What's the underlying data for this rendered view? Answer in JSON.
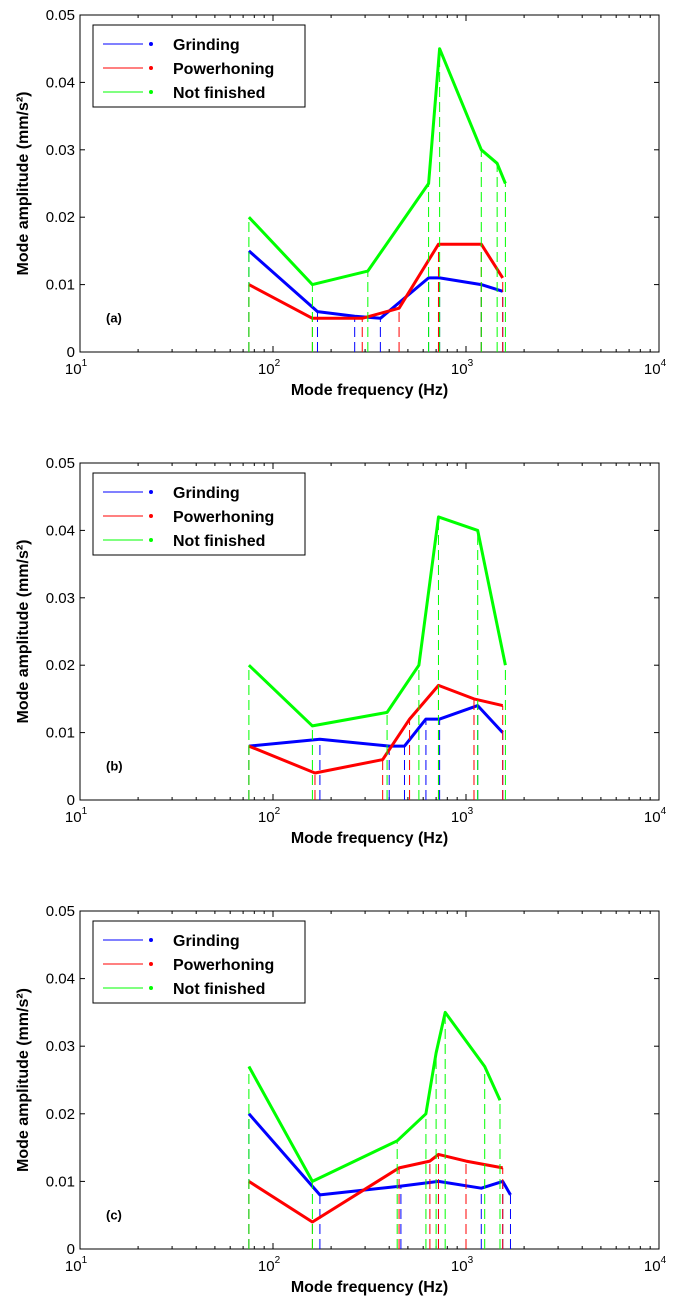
{
  "chart_data": [
    {
      "type": "line",
      "panel_label": "(a)",
      "xlabel": "Mode frequency (Hz)",
      "ylabel": "Mode amplitude (mm/s²)",
      "xscale": "log",
      "xlim": [
        10,
        10000
      ],
      "ylim": [
        0,
        0.05
      ],
      "xticks": [
        {
          "base": "10",
          "exp": "1"
        },
        {
          "base": "10",
          "exp": "2"
        },
        {
          "base": "10",
          "exp": "3"
        },
        {
          "base": "10",
          "exp": "4"
        }
      ],
      "yticks": [
        "0",
        "0.01",
        "0.02",
        "0.03",
        "0.04",
        "0.05"
      ],
      "grid": false,
      "legend_position": "top-left",
      "series": [
        {
          "name": "Grinding",
          "color": "#0000ff",
          "x": [
            75,
            170,
            265,
            360,
            640,
            730,
            1200,
            1550
          ],
          "y": [
            0.015,
            0.006,
            0.0053,
            0.005,
            0.011,
            0.011,
            0.01,
            0.009
          ]
        },
        {
          "name": "Powerhoning",
          "color": "#ff0000",
          "x": [
            75,
            160,
            290,
            450,
            720,
            1200,
            1550
          ],
          "y": [
            0.01,
            0.005,
            0.005,
            0.0065,
            0.016,
            0.016,
            0.011
          ]
        },
        {
          "name": "Not finished",
          "color": "#00ff00",
          "x": [
            75,
            160,
            310,
            640,
            730,
            1200,
            1450,
            1600
          ],
          "y": [
            0.02,
            0.01,
            0.012,
            0.025,
            0.045,
            0.03,
            0.028,
            0.025
          ]
        }
      ]
    },
    {
      "type": "line",
      "panel_label": "(b)",
      "xlabel": "Mode frequency (Hz)",
      "ylabel": "Mode amplitude (mm/s²)",
      "xscale": "log",
      "xlim": [
        10,
        10000
      ],
      "ylim": [
        0,
        0.05
      ],
      "xticks": [
        {
          "base": "10",
          "exp": "1"
        },
        {
          "base": "10",
          "exp": "2"
        },
        {
          "base": "10",
          "exp": "3"
        },
        {
          "base": "10",
          "exp": "4"
        }
      ],
      "yticks": [
        "0",
        "0.01",
        "0.02",
        "0.03",
        "0.04",
        "0.05"
      ],
      "grid": false,
      "legend_position": "top-left",
      "series": [
        {
          "name": "Grinding",
          "color": "#0000ff",
          "x": [
            75,
            175,
            400,
            480,
            620,
            730,
            1150,
            1550
          ],
          "y": [
            0.008,
            0.009,
            0.008,
            0.008,
            0.012,
            0.012,
            0.014,
            0.01
          ]
        },
        {
          "name": "Powerhoning",
          "color": "#ff0000",
          "x": [
            75,
            165,
            370,
            510,
            720,
            1100,
            1550
          ],
          "y": [
            0.008,
            0.004,
            0.006,
            0.012,
            0.017,
            0.015,
            0.014
          ]
        },
        {
          "name": "Not finished",
          "color": "#00ff00",
          "x": [
            75,
            160,
            390,
            570,
            720,
            1150,
            1600
          ],
          "y": [
            0.02,
            0.011,
            0.013,
            0.02,
            0.042,
            0.04,
            0.02
          ]
        }
      ]
    },
    {
      "type": "line",
      "panel_label": "(c)",
      "xlabel": "Mode frequency (Hz)",
      "ylabel": "Mode amplitude (mm/s²)",
      "xscale": "log",
      "xlim": [
        10,
        10000
      ],
      "ylim": [
        0,
        0.05
      ],
      "xticks": [
        {
          "base": "10",
          "exp": "1"
        },
        {
          "base": "10",
          "exp": "2"
        },
        {
          "base": "10",
          "exp": "3"
        },
        {
          "base": "10",
          "exp": "4"
        }
      ],
      "yticks": [
        "0",
        "0.01",
        "0.02",
        "0.03",
        "0.04",
        "0.05"
      ],
      "grid": false,
      "legend_position": "top-left",
      "series": [
        {
          "name": "Grinding",
          "color": "#0000ff",
          "x": [
            75,
            175,
            460,
            720,
            1200,
            1550,
            1700
          ],
          "y": [
            0.02,
            0.008,
            0.0093,
            0.01,
            0.009,
            0.01,
            0.008
          ]
        },
        {
          "name": "Powerhoning",
          "color": "#ff0000",
          "x": [
            75,
            160,
            450,
            650,
            720,
            1000,
            1550
          ],
          "y": [
            0.01,
            0.004,
            0.012,
            0.013,
            0.014,
            0.013,
            0.012
          ]
        },
        {
          "name": "Not finished",
          "color": "#00ff00",
          "x": [
            75,
            160,
            440,
            620,
            700,
            780,
            1250,
            1500
          ],
          "y": [
            0.027,
            0.01,
            0.016,
            0.02,
            0.029,
            0.035,
            0.027,
            0.022
          ]
        }
      ]
    }
  ]
}
